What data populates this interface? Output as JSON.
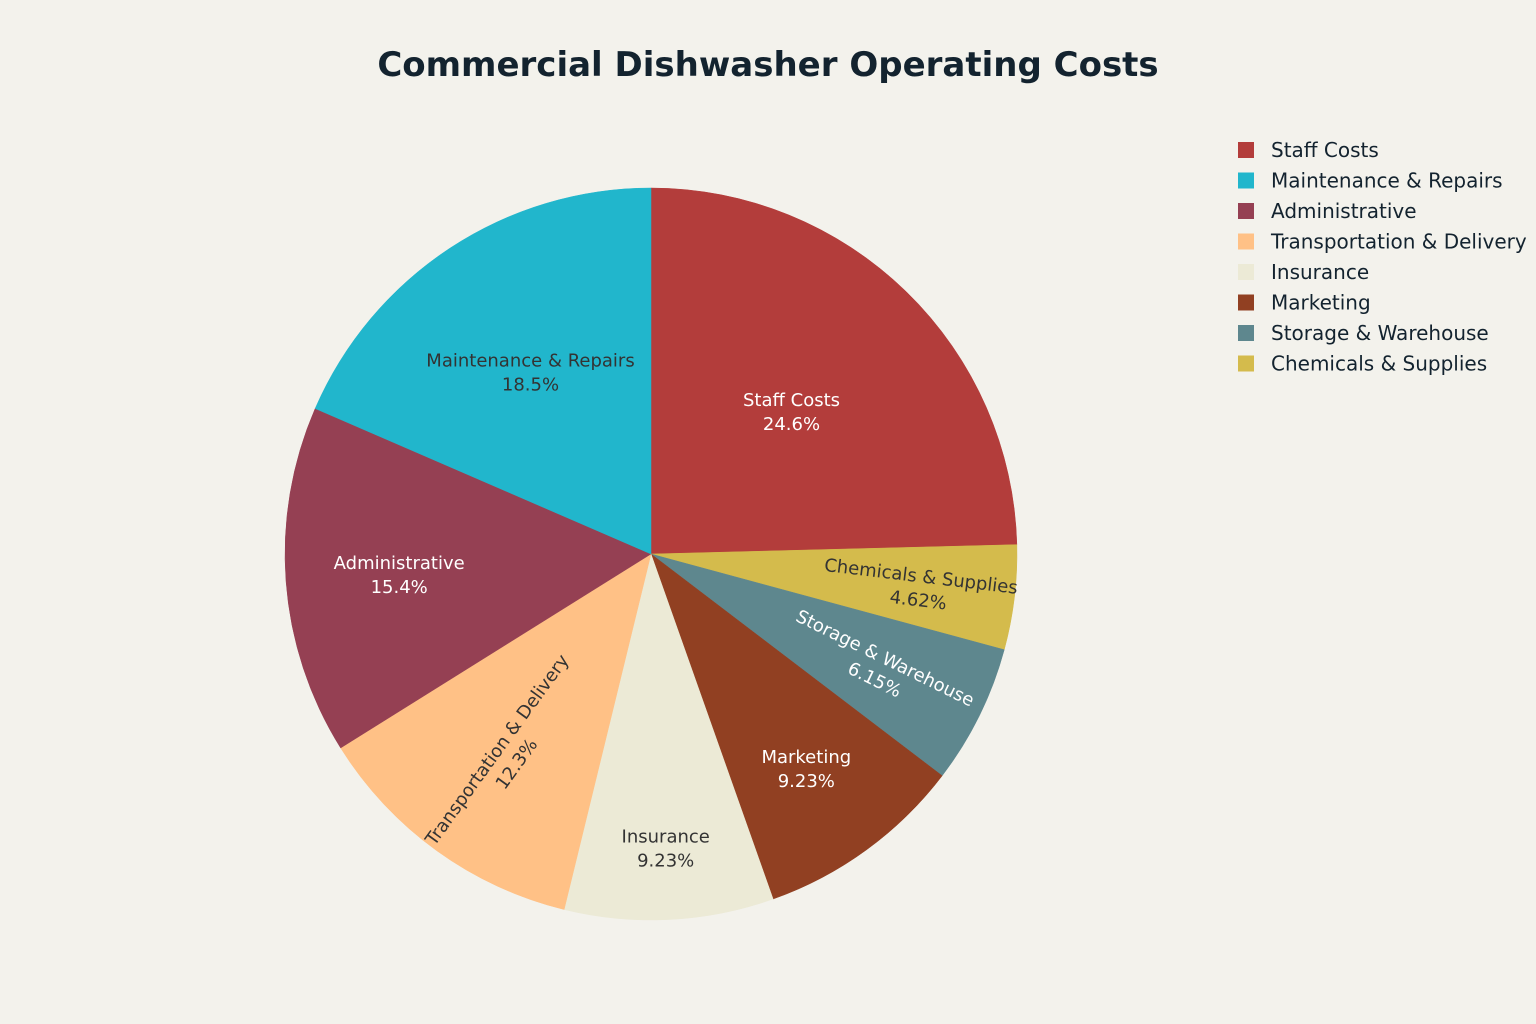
{
  "chart_data": {
    "type": "pie",
    "title": "Commercial Dishwasher Operating Costs",
    "direction": "clockwise",
    "start_angle": "12 o'clock",
    "legend_placement": "top-right",
    "slices": [
      {
        "label": "Staff Costs",
        "value": 24.6,
        "value_label": "24.6%",
        "color": "#b33d3b",
        "text_color": "#ffffff"
      },
      {
        "label": "Chemicals & Supplies",
        "value": 4.62,
        "value_label": "4.62%",
        "color": "#d4bb4c",
        "text_color": "#333333"
      },
      {
        "label": "Storage & Warehouse",
        "value": 6.15,
        "value_label": "6.15%",
        "color": "#5e878e",
        "text_color": "#ffffff"
      },
      {
        "label": "Marketing",
        "value": 9.23,
        "value_label": "9.23%",
        "color": "#914022",
        "text_color": "#ffffff"
      },
      {
        "label": "Insurance",
        "value": 9.23,
        "value_label": "9.23%",
        "color": "#ecead6",
        "text_color": "#333333"
      },
      {
        "label": "Transportation & Delivery",
        "value": 12.3,
        "value_label": "12.3%",
        "color": "#ffc186",
        "text_color": "#333333"
      },
      {
        "label": "Administrative",
        "value": 15.4,
        "value_label": "15.4%",
        "color": "#954053",
        "text_color": "#ffffff"
      },
      {
        "label": "Maintenance & Repairs",
        "value": 18.5,
        "value_label": "18.5%",
        "color": "#21b6cc",
        "text_color": "#333333"
      }
    ],
    "legend": [
      "Staff Costs",
      "Maintenance & Repairs",
      "Administrative",
      "Transportation & Delivery",
      "Insurance",
      "Marketing",
      "Storage & Warehouse",
      "Chemicals & Supplies"
    ]
  }
}
